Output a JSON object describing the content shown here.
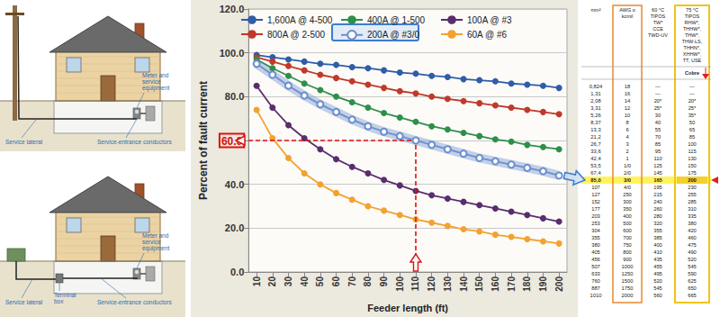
{
  "chart_data": {
    "type": "line",
    "x_label": "Feeder length (ft)",
    "y_label": "Percent of fault current",
    "categories": [
      10,
      20,
      30,
      40,
      50,
      60,
      70,
      80,
      90,
      100,
      110,
      120,
      130,
      140,
      150,
      160,
      170,
      180,
      190,
      200
    ],
    "ylim": [
      0,
      120
    ],
    "yticks": [
      {
        "value": 0,
        "label": "0.0"
      },
      {
        "value": 20,
        "label": "20.0"
      },
      {
        "value": 40,
        "label": "40.0"
      },
      {
        "value": 60,
        "label": "60.0"
      },
      {
        "value": 80,
        "label": "80.0"
      },
      {
        "value": 100,
        "label": "100.0"
      },
      {
        "value": 120,
        "label": "120.0"
      }
    ],
    "grid": true,
    "legend": "top",
    "marker": "circle",
    "series": [
      {
        "name": "1,600A @ 4-500",
        "color": "#2f5da8",
        "values": [
          99,
          98,
          97,
          96,
          95,
          94.5,
          93.5,
          93,
          92,
          91,
          90.5,
          89.5,
          89,
          88,
          87.5,
          87,
          86,
          85.5,
          85,
          84
        ]
      },
      {
        "name": "800A @ 2-500",
        "color": "#c0392b",
        "values": [
          98,
          96,
          94,
          92,
          90,
          88.5,
          87,
          85.5,
          84,
          82.5,
          81.5,
          80,
          79,
          78,
          77,
          76,
          75,
          74,
          73,
          72
        ]
      },
      {
        "name": "400A @ 1-500",
        "color": "#2e8f4a",
        "values": [
          97,
          93,
          89.5,
          86,
          83,
          80,
          77.5,
          75,
          72.5,
          70.5,
          68.5,
          66.5,
          65,
          63.5,
          62,
          60.5,
          59.5,
          58,
          57,
          56
        ]
      },
      {
        "name": "200A @ #3/0",
        "color": "#6b8fcf",
        "marker": "open_circle",
        "line_style": "highlighted",
        "values": [
          95,
          90,
          85,
          80.5,
          76.5,
          73,
          69.5,
          66.5,
          64,
          62,
          60,
          58,
          56,
          54,
          52,
          50.5,
          49,
          47.5,
          46,
          44
        ]
      },
      {
        "name": "100A @ #3",
        "color": "#5a2d6e",
        "values": [
          85,
          75,
          67,
          61,
          56,
          51.5,
          48,
          45,
          42,
          39.5,
          37,
          35,
          33.5,
          32,
          30.5,
          29,
          27.5,
          26,
          24.5,
          23
        ]
      },
      {
        "name": "60A @ #6",
        "color": "#f2a230",
        "values": [
          74,
          61,
          52,
          45,
          40,
          36,
          33,
          30,
          28,
          26,
          24,
          22.5,
          21,
          19.5,
          18.5,
          17,
          16,
          15,
          14,
          13
        ]
      }
    ],
    "annotations": [
      {
        "x": 110,
        "y": 60
      }
    ]
  },
  "diagrams": [
    {
      "labels": [
        {
          "lines": [
            "Meter and",
            "service",
            "equipment"
          ]
        },
        {
          "lines": [
            "Service lateral"
          ]
        },
        {
          "lines": [
            "Service-entrance conductors"
          ]
        }
      ]
    },
    {
      "labels": [
        {
          "lines": [
            "Meter and",
            "service",
            "equipment"
          ]
        },
        {
          "lines": [
            "Service lateral"
          ]
        },
        {
          "lines": [
            "Terminal",
            "box"
          ]
        },
        {
          "lines": [
            "Service-entrance conductors"
          ]
        }
      ]
    }
  ],
  "table": {
    "header": [
      [
        "mm²"
      ],
      [
        "AWG o",
        "kcmil"
      ],
      [
        "60 °C",
        "TIPOS",
        "TW*",
        "CCE",
        "TWD-UV"
      ],
      [
        "75 °C",
        "TIPOS",
        "RHW*,",
        "THHW*,",
        "THW*,",
        "THW-LS,",
        "THHN*,",
        "XHHW*,",
        "TT, USE"
      ]
    ],
    "subheader": "Cobre",
    "highlight": "3/0",
    "rows": [
      [
        "0,824",
        "18",
        "—",
        "—"
      ],
      [
        "1,31",
        "16",
        "—",
        "—"
      ],
      [
        "2,08",
        "14",
        "20*",
        "20*"
      ],
      [
        "3,31",
        "12",
        "25*",
        "25*"
      ],
      [
        "5,26",
        "10",
        "30",
        "35*"
      ],
      [
        "8,37",
        "8",
        "40",
        "50"
      ],
      [
        "13,3",
        "6",
        "55",
        "65"
      ],
      [
        "21,2",
        "4",
        "70",
        "85"
      ],
      [
        "26,7",
        "3",
        "85",
        "100"
      ],
      [
        "33,6",
        "2",
        "95",
        "115"
      ],
      [
        "42,4",
        "1",
        "110",
        "130"
      ],
      [
        "53,5",
        "1/0",
        "125",
        "150"
      ],
      [
        "67,4",
        "2/0",
        "145",
        "175"
      ],
      [
        "85,0",
        "3/0",
        "165",
        "200"
      ],
      [
        "107",
        "4/0",
        "195",
        "230"
      ],
      [
        "127",
        "250",
        "215",
        "255"
      ],
      [
        "152",
        "300",
        "240",
        "285"
      ],
      [
        "177",
        "350",
        "260",
        "310"
      ],
      [
        "203",
        "400",
        "280",
        "335"
      ],
      [
        "253",
        "500",
        "320",
        "380"
      ],
      [
        "304",
        "600",
        "355",
        "420"
      ],
      [
        "355",
        "700",
        "385",
        "460"
      ],
      [
        "380",
        "750",
        "400",
        "475"
      ],
      [
        "405",
        "800",
        "410",
        "490"
      ],
      [
        "456",
        "900",
        "435",
        "520"
      ],
      [
        "507",
        "1000",
        "455",
        "545"
      ],
      [
        "633",
        "1250",
        "495",
        "590"
      ],
      [
        "760",
        "1500",
        "520",
        "625"
      ],
      [
        "887",
        "1750",
        "545",
        "650"
      ],
      [
        "1010",
        "2000",
        "560",
        "665"
      ]
    ]
  }
}
